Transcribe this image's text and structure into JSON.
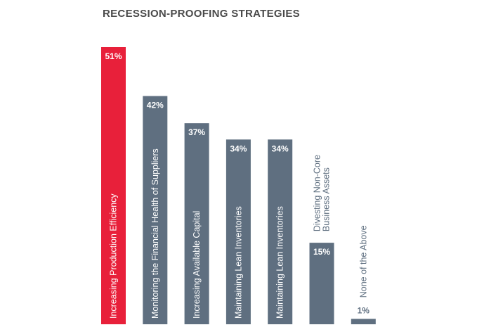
{
  "chart_data": {
    "type": "bar",
    "title": "RECESSION-PROOFING STRATEGIES",
    "xlabel": "",
    "ylabel": "",
    "ylim": [
      0,
      51
    ],
    "grid": false,
    "categories": [
      "Increasing Production Efficiency",
      "Monitoring the Financial Health of Suppliers",
      "Increasing Available Capital",
      "Maintaining Lean Inventories",
      "Maintaining Lean Inventories",
      "Divesting Non-Core Business Assets",
      "None of the Above"
    ],
    "values": [
      51,
      42,
      37,
      34,
      34,
      15,
      1
    ],
    "value_labels": [
      "51%",
      "42%",
      "37%",
      "34%",
      "34%",
      "15%",
      "1%"
    ],
    "colors": [
      "#e8203a",
      "#5f6f80",
      "#5f6f80",
      "#5f6f80",
      "#5f6f80",
      "#5f6f80",
      "#5f6f80"
    ]
  }
}
